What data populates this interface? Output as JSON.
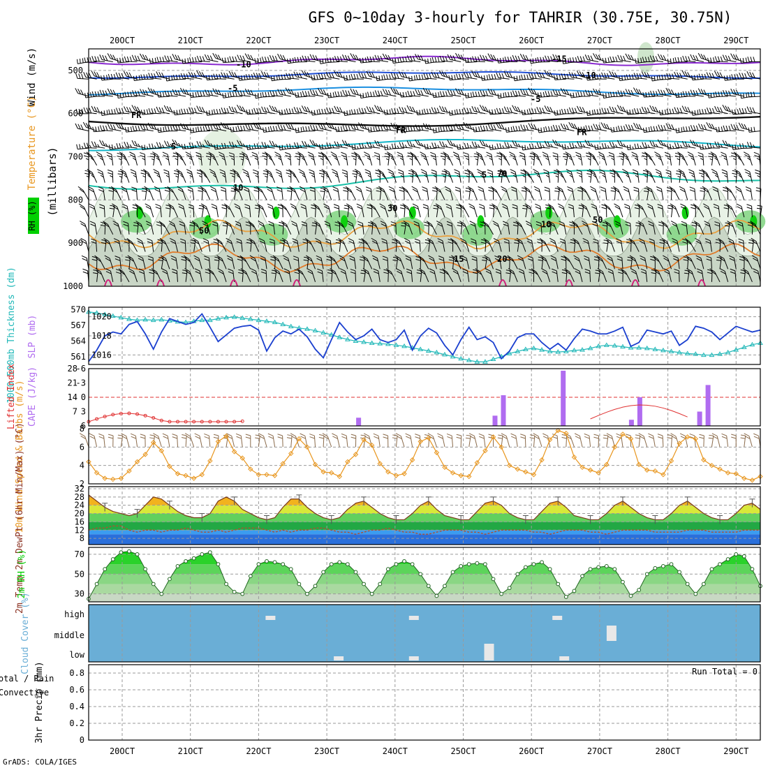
{
  "title": "GFS 0~10day 3-hourly for TAHRIR (30.75E, 30.75N)",
  "credit": "GrADS: COLA/IGES",
  "days": [
    "20OCT",
    "21OCT",
    "22OCT",
    "23OCT",
    "24OCT",
    "25OCT",
    "26OCT",
    "27OCT",
    "28OCT",
    "29OCT"
  ],
  "colors": {
    "cyan": "#20b8b8",
    "blue": "#1a3fcf",
    "purple": "#b06cf0",
    "red": "#e03030",
    "orange": "#e8961e",
    "green": "#00d000",
    "cloud": "#6aaed6",
    "rh_green": "#22cc22"
  },
  "panels": {
    "upper": {
      "y_label": "(millibars)",
      "legend": {
        "wind": "Wind (m/s)",
        "temp": "Temperature (°C)",
        "rh": "RH (%)"
      },
      "levels": [
        "500",
        "600",
        "700",
        "800",
        "900",
        "1000"
      ],
      "contour_labels": {
        "t_m15": "-15",
        "t_m10": "-10",
        "t_m10b": "-10",
        "t_m5": "-5",
        "t_m5b": "-5",
        "fr": "FR",
        "t_5": "5",
        "t_5b": "5",
        "t_10": "10",
        "t_10b": "10",
        "t_15": "15",
        "t_20": "20",
        "rh_30": "30",
        "rh_50": "50",
        "rh_70": "70"
      }
    },
    "slp": {
      "label_thick": "1000-500mb Thickness (dm)",
      "label_slp": "SLP (mb)",
      "left_ticks": [
        "561",
        "564",
        "567",
        "570"
      ],
      "right_ticks": [
        "1016",
        "1018",
        "1020"
      ]
    },
    "li": {
      "label_li": "Lifted Index",
      "label_cape": "CAPE (J/kg)",
      "left_ticks": [
        "-6",
        "-3",
        "0",
        "3",
        "6"
      ],
      "right_ticks": [
        "7",
        "14",
        "21",
        "28"
      ]
    },
    "wind": {
      "label": "10m Wind Speed & Barbs (m/s)",
      "ticks": [
        "2",
        "4",
        "6",
        "8"
      ]
    },
    "temp": {
      "label": "2m Temp 2m DewPt (6hr Min/Max) (°C)",
      "ticks": [
        "8",
        "12",
        "16",
        "20",
        "24",
        "28",
        "32"
      ]
    },
    "rh2m": {
      "label": "2m RH (%)",
      "ticks": [
        "30",
        "50",
        "70"
      ]
    },
    "cloud": {
      "label": "Cloud Cover (%)",
      "ticks": [
        "high",
        "middle",
        "low"
      ]
    },
    "precip": {
      "label_legend": "Total / Rain Convective",
      "label_axis": "3hr Precip (mm)",
      "ticks": [
        "0",
        "0.2",
        "0.4",
        "0.6",
        "0.8"
      ],
      "run_total": "Run Total = 0"
    }
  },
  "chart_data": [
    {
      "type": "line",
      "title": "1000-500mb Thickness and SLP",
      "x_unit": "3-hourly steps from 19OCT 18Z",
      "series": [
        {
          "name": "SLP (mb)",
          "axis": "right",
          "ylim": [
            1015,
            1021
          ],
          "values": [
            1015.3,
            1016.5,
            1018,
            1018.4,
            1018.2,
            1019.2,
            1019.5,
            1018.2,
            1016.6,
            1018.4,
            1019.8,
            1019.5,
            1019.2,
            1019.4,
            1020.3,
            1018.9,
            1017.4,
            1018.1,
            1018.8,
            1019.0,
            1019.1,
            1018.6,
            1016.4,
            1017.8,
            1018.5,
            1018.2,
            1018.7,
            1017.9,
            1016.6,
            1015.7,
            1017.6,
            1019.4,
            1018.4,
            1017.6,
            1018.0,
            1018.7,
            1017.6,
            1017.3,
            1017.6,
            1018.6,
            1016.5,
            1018.0,
            1018.8,
            1018.3,
            1017.0,
            1016.0,
            1017.6,
            1018.9,
            1017.6,
            1017.9,
            1017.3,
            1015.6,
            1016.4,
            1017.8,
            1018.2,
            1018.2,
            1017.3,
            1016.6,
            1017.2,
            1016.5,
            1017.7,
            1018.7,
            1018.5,
            1018.2,
            1018.2,
            1018.5,
            1018.9,
            1016.9,
            1017.3,
            1018.6,
            1018.4,
            1018.2,
            1018.5,
            1017.0,
            1017.6,
            1019.0,
            1018.8,
            1018.4,
            1017.6,
            1018.3,
            1019.0,
            1018.7,
            1018.4,
            1018.6
          ]
        },
        {
          "name": "1000-500mb Thickness (dm)",
          "axis": "left",
          "ylim": [
            559.5,
            570.5
          ],
          "values": [
            569.6,
            569.4,
            569.1,
            568.8,
            568.5,
            568.2,
            568,
            568.1,
            568,
            568.1,
            567.9,
            567.7,
            567.6,
            567.8,
            568,
            568,
            568.3,
            568.5,
            568.6,
            568.4,
            568.2,
            568,
            567.8,
            567.6,
            567.2,
            566.8,
            566.5,
            566.3,
            566,
            565.6,
            565.2,
            564.7,
            564.3,
            564,
            563.8,
            563.6,
            563.5,
            563.4,
            563.2,
            563,
            562.7,
            562.4,
            562.1,
            561.8,
            561.4,
            561,
            560.6,
            560.3,
            560,
            560,
            560.5,
            561,
            561.6,
            562,
            562.4,
            562.6,
            562.3,
            562,
            561.9,
            562,
            562.2,
            562.3,
            562.6,
            563,
            563.2,
            563.1,
            562.9,
            562.7,
            562.7,
            562.6,
            562.4,
            562.2,
            562,
            561.8,
            561.6,
            561.5,
            561.3,
            561.3,
            561.5,
            561.8,
            562.3,
            562.8,
            563.3,
            563.6
          ]
        }
      ]
    },
    {
      "type": "bar",
      "title": "Lifted Index and CAPE",
      "cape_events": [
        {
          "date": "23OCT",
          "cape": 4
        },
        {
          "date": "25OCT",
          "cape": 5
        },
        {
          "date": "25OCT",
          "cape": 15
        },
        {
          "date": "26OCT",
          "cape": 27
        },
        {
          "date": "27OCT",
          "cape": 3
        },
        {
          "date": "27OCT",
          "cape": 14
        },
        {
          "date": "28OCT",
          "cape": 7
        },
        {
          "date": "28OCT",
          "cape": 20
        }
      ],
      "ylim_cape": [
        0,
        28
      ],
      "ylim_li": [
        6,
        -6
      ]
    },
    {
      "type": "line",
      "title": "10m Wind Speed",
      "ylim": [
        2,
        8
      ],
      "values": [
        4.4,
        3.2,
        2.6,
        2.5,
        2.6,
        3.4,
        4.4,
        5.2,
        6.5,
        5.6,
        3.9,
        3.1,
        2.9,
        2.6,
        3.0,
        4.5,
        6.6,
        7.2,
        5.5,
        4.8,
        3.6,
        3.0,
        3.0,
        2.9,
        4.2,
        5.3,
        6.9,
        6.0,
        4.1,
        3.3,
        3.2,
        2.8,
        4.4,
        5.2,
        6.8,
        6.2,
        4.2,
        3.3,
        2.9,
        3.1,
        4.6,
        6.6,
        7.0,
        5.4,
        3.8,
        3.2,
        2.9,
        2.8,
        4.3,
        5.6,
        7.1,
        6.0,
        4.0,
        3.6,
        3.3,
        3.0,
        4.6,
        6.8,
        7.8,
        7.5,
        4.9,
        3.8,
        3.5,
        3.2,
        4.1,
        6.0,
        7.4,
        6.9,
        4.1,
        3.5,
        3.4,
        3.0,
        4.5,
        6.4,
        7.1,
        6.9,
        4.6,
        4.0,
        3.6,
        3.2,
        3.1,
        2.6,
        2.4,
        2.8
      ]
    },
    {
      "type": "area",
      "title": "2m Temperature and Dew Point",
      "ylim": [
        5,
        33
      ],
      "temp": [
        29,
        26,
        23,
        21,
        20,
        19,
        20,
        24,
        28,
        27,
        24,
        21,
        19,
        18,
        18,
        20,
        26,
        28,
        26,
        22,
        20,
        18,
        17,
        18,
        23,
        27,
        27,
        23,
        20,
        18,
        17,
        18,
        22,
        25,
        26,
        23,
        20,
        18,
        17,
        17,
        20,
        24,
        26,
        22,
        19,
        18,
        17,
        17,
        21,
        25,
        26,
        24,
        20,
        18,
        17,
        17,
        21,
        25,
        26,
        23,
        19,
        18,
        17,
        17,
        20,
        24,
        26,
        23,
        20,
        18,
        17,
        17,
        20,
        24,
        26,
        23,
        20,
        18,
        17,
        17,
        20,
        24,
        25,
        22
      ],
      "dewpoint": [
        12,
        13,
        13,
        14,
        14,
        12,
        11,
        12,
        12,
        11,
        12,
        12,
        13,
        12,
        11,
        11,
        12,
        11,
        12,
        13,
        13,
        13,
        12,
        11,
        12,
        11,
        12,
        12,
        13,
        13,
        12,
        11,
        11,
        10,
        11,
        12,
        12,
        13,
        12,
        11,
        11,
        10,
        10,
        11,
        12,
        12,
        12,
        11,
        11,
        10,
        11,
        12,
        12,
        12,
        12,
        11,
        11,
        10,
        11,
        12,
        12,
        12,
        11,
        11,
        10,
        11,
        12,
        12,
        12,
        12,
        11,
        11,
        11,
        11,
        12,
        12,
        12,
        11,
        11,
        11,
        11,
        12,
        12,
        12
      ]
    },
    {
      "type": "area",
      "title": "2m RH",
      "ylim": [
        22,
        77
      ],
      "values": [
        25,
        40,
        55,
        65,
        72,
        73,
        70,
        55,
        40,
        30,
        45,
        58,
        63,
        66,
        70,
        72,
        60,
        40,
        32,
        30,
        48,
        60,
        63,
        62,
        60,
        55,
        40,
        30,
        38,
        52,
        60,
        62,
        60,
        52,
        40,
        30,
        40,
        55,
        60,
        63,
        60,
        50,
        38,
        28,
        38,
        52,
        58,
        60,
        61,
        60,
        45,
        30,
        36,
        50,
        57,
        60,
        62,
        55,
        40,
        27,
        33,
        48,
        55,
        57,
        58,
        55,
        42,
        28,
        34,
        50,
        56,
        58,
        60,
        52,
        40,
        30,
        40,
        55,
        60,
        65,
        70,
        68,
        55,
        38
      ]
    },
    {
      "type": "bar",
      "title": "Cloud Cover",
      "categories": [
        "high",
        "middle",
        "low"
      ],
      "notes": "mostly clear; isolated small cloud amounts",
      "events": [
        {
          "level": "high",
          "date": "22OCT"
        },
        {
          "level": "high",
          "date": "24OCT"
        },
        {
          "level": "high",
          "date": "26OCT"
        },
        {
          "level": "middle",
          "date": "27OCT"
        },
        {
          "level": "low",
          "date": "23OCT"
        },
        {
          "level": "low",
          "date": "24OCT"
        },
        {
          "level": "low",
          "date": "25OCT"
        },
        {
          "level": "low",
          "date": "26OCT"
        }
      ]
    },
    {
      "type": "bar",
      "title": "3hr Precip",
      "ylim": [
        0,
        0.9
      ],
      "values": [],
      "run_total": "0"
    }
  ]
}
